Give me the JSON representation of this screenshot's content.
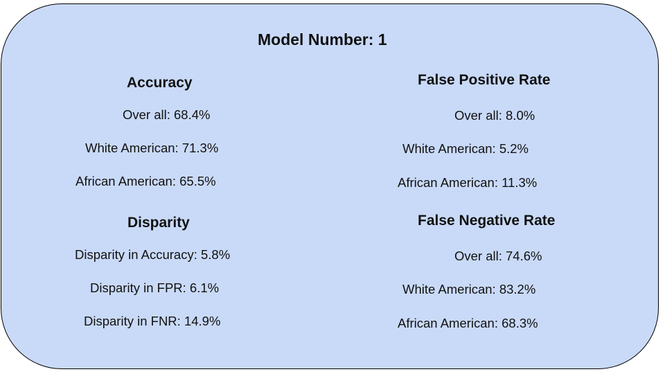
{
  "title": "Model Number: 1",
  "accuracy": {
    "heading": "Accuracy",
    "overall": "Over all: 68.4%",
    "white": "White American: 71.3%",
    "african": "African American: 65.5%"
  },
  "disparity": {
    "heading": "Disparity",
    "accuracy": "Disparity in Accuracy: 5.8%",
    "fpr": "Disparity in FPR: 6.1%",
    "fnr": "Disparity in FNR:  14.9%"
  },
  "fpr": {
    "heading": "False Positive Rate",
    "overall": "Over all: 8.0%",
    "white": "White American: 5.2%",
    "african": "African American: 11.3%"
  },
  "fnr": {
    "heading": "False Negative Rate",
    "overall": "Over all: 74.6%",
    "white": "White American: 83.2%",
    "african": "African American: 68.3%"
  },
  "colors": {
    "card_background": "#c9daf8",
    "card_border": "#000000",
    "text": "#111111"
  }
}
